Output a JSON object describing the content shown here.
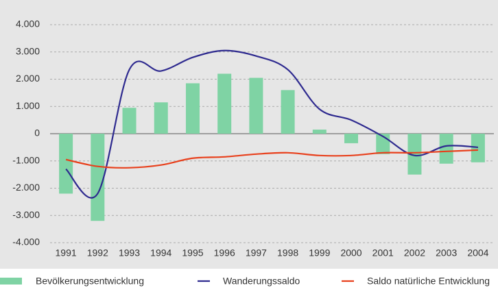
{
  "chart_data": {
    "type": "bar",
    "categories": [
      "1991",
      "1992",
      "1993",
      "1994",
      "1995",
      "1996",
      "1997",
      "1998",
      "1999",
      "2000",
      "2001",
      "2002",
      "2003",
      "2004"
    ],
    "series": [
      {
        "name": "Bevölkerungsentwicklung",
        "type": "bar",
        "color": "#7fd3a4",
        "values": [
          -2200,
          -3200,
          950,
          1150,
          1850,
          2200,
          2050,
          1600,
          150,
          -350,
          -750,
          -1500,
          -1100,
          -1050
        ]
      },
      {
        "name": "Wanderungssaldo",
        "type": "line",
        "color": "#2e2a8f",
        "values": [
          -1300,
          -2200,
          2350,
          2300,
          2800,
          3050,
          2850,
          2350,
          900,
          500,
          -100,
          -800,
          -450,
          -500
        ]
      },
      {
        "name": "Saldo natürliche  Entwicklung",
        "type": "line",
        "color": "#e8401c",
        "values": [
          -950,
          -1200,
          -1250,
          -1150,
          -900,
          -850,
          -750,
          -700,
          -800,
          -800,
          -700,
          -700,
          -650,
          -600
        ]
      }
    ],
    "ylim": [
      -4000,
      4000
    ],
    "yticks": [
      {
        "value": 4000,
        "label": "4.000"
      },
      {
        "value": 3000,
        "label": "3.000"
      },
      {
        "value": 2000,
        "label": "2.000"
      },
      {
        "value": 1000,
        "label": "1.000"
      },
      0,
      {
        "value": -1000,
        "label": "-1.000"
      },
      {
        "value": -2000,
        "label": "-2.000"
      },
      {
        "value": -3000,
        "label": "-3.000"
      },
      {
        "value": -4000,
        "label": "-4.000"
      }
    ],
    "grid": true
  }
}
